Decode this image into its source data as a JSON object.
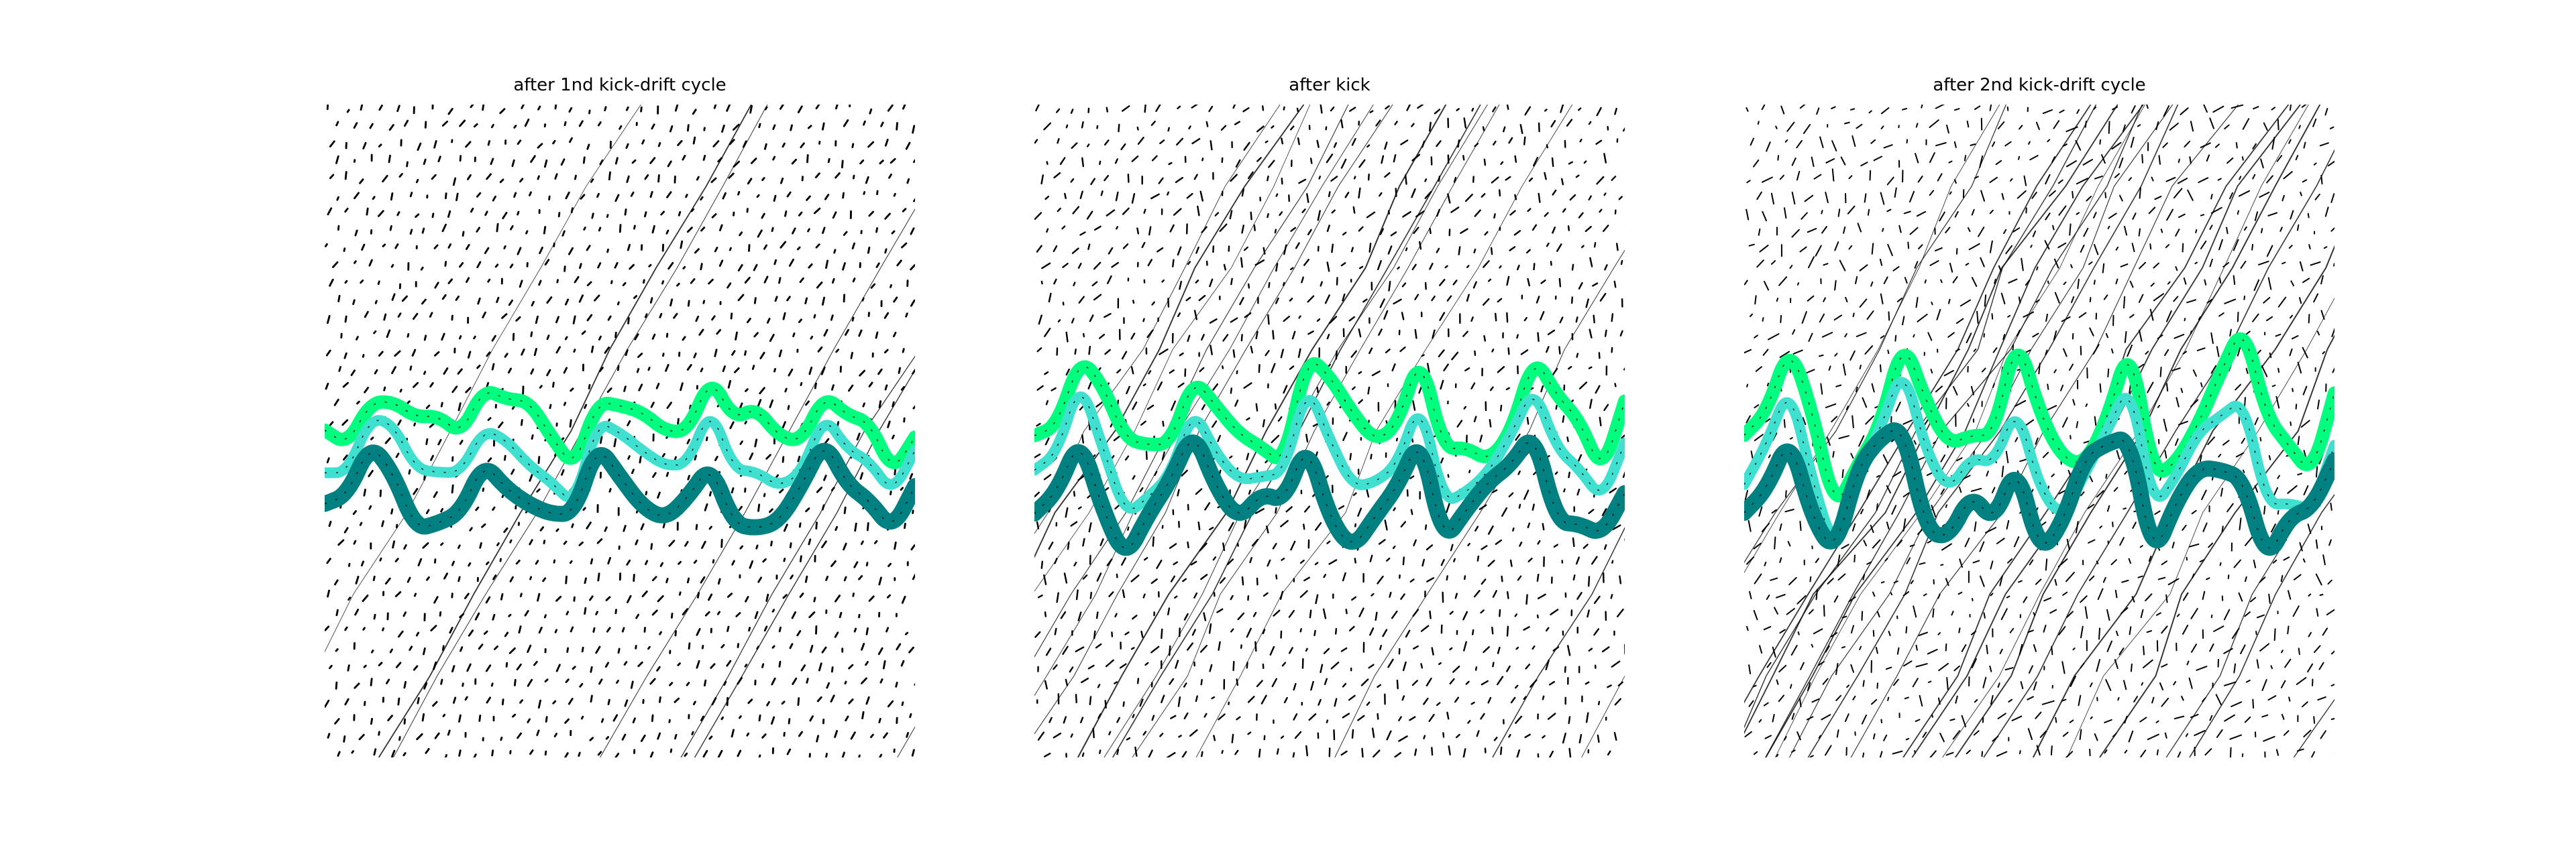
{
  "panels": [
    {
      "title": "after 1nd kick-drift cycle"
    },
    {
      "title": "after kick"
    },
    {
      "title": "after 2nd kick-drift cycle"
    }
  ],
  "colors": {
    "background": "#ffffff",
    "ink": "#000000",
    "band_top": "#00ff7f",
    "band_middle": "#40e0d0",
    "band_bottom": "#008080"
  }
}
